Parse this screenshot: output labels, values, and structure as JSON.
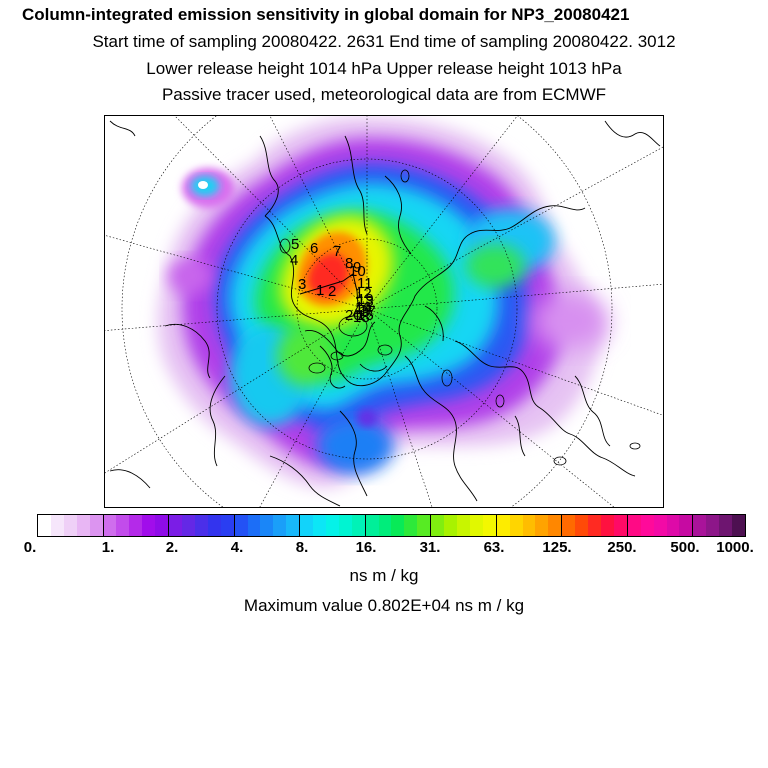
{
  "header": {
    "title": "Column-integrated emission sensitivity in global domain for NP3_20080421",
    "sampling_line": "Start time of sampling 20080422.  2631     End time of sampling 20080422.  3012",
    "height_line": "Lower release height 1014 hPa        Upper release height 1013 hPa",
    "tracer_line": "Passive tracer used, meteorological data are from ECMWF"
  },
  "map": {
    "projection": "polar stereographic, north pole",
    "release_labels": [
      "5",
      "6",
      "7",
      "4",
      "8",
      "9",
      "10",
      "11",
      "3",
      "1",
      "2",
      "12",
      "13",
      "14",
      "15",
      "16",
      "17",
      "18",
      "19",
      "20"
    ]
  },
  "colorbar": {
    "colors": [
      "#ffffff",
      "#f6e6fb",
      "#efd0f7",
      "#e8b6f4",
      "#dc94f0",
      "#cf6ded",
      "#c24ceb",
      "#b42ae9",
      "#a10deb",
      "#8f0ce8",
      "#7b1de6",
      "#6428e6",
      "#4b2fe9",
      "#3334ee",
      "#2a3ef2",
      "#2352f5",
      "#1c6ef7",
      "#1a86f8",
      "#1a9ff9",
      "#18b8fa",
      "#12d3fa",
      "#0ce6f6",
      "#05f2e8",
      "#00f4d2",
      "#00f2b7",
      "#00ef99",
      "#00ed7b",
      "#08ea57",
      "#2de93a",
      "#57eb23",
      "#80ee10",
      "#a8f200",
      "#c8f500",
      "#e1f800",
      "#f3f800",
      "#fdec00",
      "#ffd500",
      "#ffbd00",
      "#ffa300",
      "#ff8700",
      "#ff6a00",
      "#ff4a08",
      "#ff2a22",
      "#ff1140",
      "#ff0a66",
      "#ff0a85",
      "#ff0a9a",
      "#f30aa6",
      "#de0aa8",
      "#c60aa2",
      "#a9139a",
      "#8d1689",
      "#6e1570",
      "#4d1051"
    ],
    "tick_labels": [
      "0.",
      "1.",
      "2.",
      "4.",
      "8.",
      "16.",
      "31.",
      "63.",
      "125.",
      "250.",
      "500.",
      "1000."
    ],
    "units": "ns m / kg"
  },
  "footer": {
    "max_value": "Maximum value  0.802E+04 ns m / kg"
  }
}
